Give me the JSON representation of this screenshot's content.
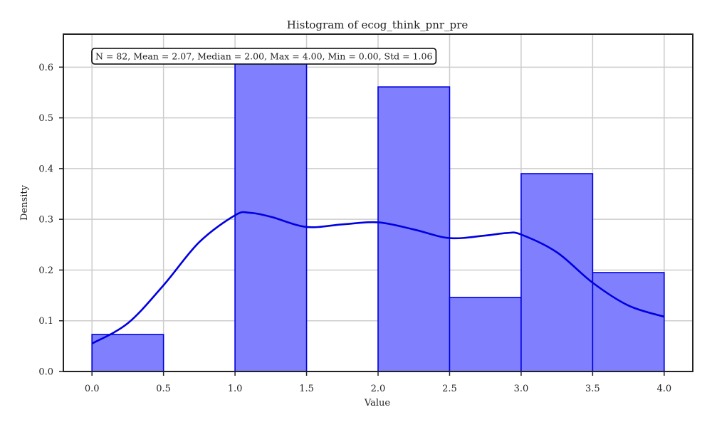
{
  "chart_data": {
    "type": "bar",
    "title": "Histogram of ecog_think_pnr_pre",
    "xlabel": "Value",
    "ylabel": "Density",
    "xlim": [
      -0.2,
      4.2
    ],
    "ylim": [
      0,
      0.665
    ],
    "xticks": [
      0.0,
      0.5,
      1.0,
      1.5,
      2.0,
      2.5,
      3.0,
      3.5,
      4.0
    ],
    "xtick_labels": [
      "0.0",
      "0.5",
      "1.0",
      "1.5",
      "2.0",
      "2.5",
      "3.0",
      "3.5",
      "4.0"
    ],
    "yticks": [
      0.0,
      0.1,
      0.2,
      0.3,
      0.4,
      0.5,
      0.6
    ],
    "ytick_labels": [
      "0.0",
      "0.1",
      "0.2",
      "0.3",
      "0.4",
      "0.5",
      "0.6"
    ],
    "grid": true,
    "bins": [
      {
        "x0": 0.0,
        "x1": 0.5,
        "density": 0.073
      },
      {
        "x0": 0.5,
        "x1": 1.0,
        "density": 0.0
      },
      {
        "x0": 1.0,
        "x1": 1.5,
        "density": 0.61
      },
      {
        "x0": 1.5,
        "x1": 2.0,
        "density": 0.0
      },
      {
        "x0": 2.0,
        "x1": 2.5,
        "density": 0.561
      },
      {
        "x0": 2.5,
        "x1": 3.0,
        "density": 0.146
      },
      {
        "x0": 3.0,
        "x1": 3.5,
        "density": 0.39
      },
      {
        "x0": 3.5,
        "x1": 4.0,
        "density": 0.195
      }
    ],
    "kde": {
      "x": [
        0.0,
        0.25,
        0.5,
        0.75,
        1.0,
        1.1,
        1.25,
        1.5,
        1.75,
        2.0,
        2.25,
        2.5,
        2.75,
        2.9,
        3.0,
        3.25,
        3.5,
        3.75,
        4.0
      ],
      "y": [
        0.055,
        0.095,
        0.17,
        0.255,
        0.308,
        0.313,
        0.305,
        0.285,
        0.29,
        0.294,
        0.28,
        0.263,
        0.268,
        0.273,
        0.27,
        0.235,
        0.175,
        0.13,
        0.108
      ]
    },
    "stats_box": "N = 82, Mean = 2.07, Median = 2.00, Max = 4.00, Min = 0.00, Std = 1.06",
    "colors": {
      "bar_fill": "#8080ff",
      "bar_edge": "#0000dd",
      "kde_line": "#0000e0",
      "grid": "#cccccc",
      "axes": "#222222"
    }
  }
}
